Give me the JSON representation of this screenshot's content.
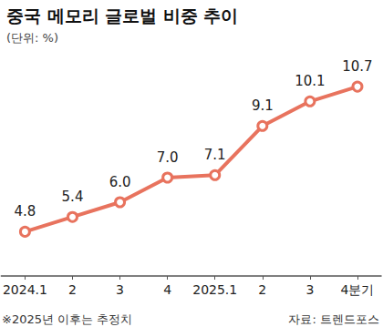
{
  "chart_data": {
    "type": "line",
    "title": "중국 메모리 글로벌 비중 추이",
    "subtitle": "(단위: %)",
    "categories": [
      "2024.1",
      "2",
      "3",
      "4",
      "2025.1",
      "2",
      "3",
      "4분기"
    ],
    "values": [
      4.8,
      5.4,
      6.0,
      7.0,
      7.1,
      9.1,
      10.1,
      10.7
    ],
    "value_labels": [
      "4.8",
      "5.4",
      "6.0",
      "7.0",
      "7.1",
      "9.1",
      "10.1",
      "10.7"
    ],
    "color": "#e8735e",
    "marker": "circle",
    "ylim": [
      3,
      12
    ],
    "grid": false,
    "data_labels": true,
    "tick_labels": "x",
    "annotations": [
      "※2025년 이후는 추정치",
      "자료: 트렌드포스"
    ]
  }
}
